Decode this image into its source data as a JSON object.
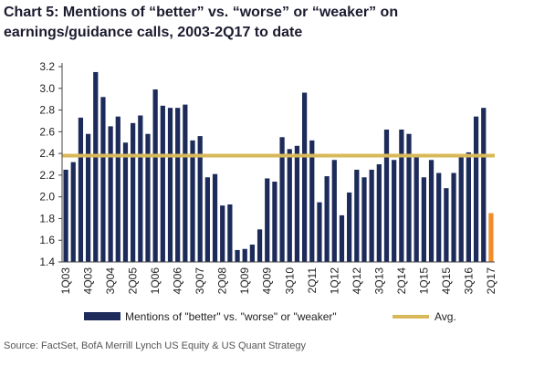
{
  "chart_data": {
    "type": "bar",
    "title": [
      "Chart 5: Mentions of “better” vs. “worse” or “weaker” on",
      "earnings/guidance calls, 2003-2Q17 to date"
    ],
    "source": "Source: FactSet, BofA Merrill Lynch US Equity & US Quant Strategy",
    "categories": [
      "1Q03",
      null,
      null,
      "4Q03",
      null,
      null,
      "3Q04",
      null,
      null,
      "2Q05",
      null,
      null,
      "1Q06",
      null,
      null,
      "4Q06",
      null,
      null,
      "3Q07",
      null,
      null,
      "2Q08",
      null,
      null,
      "1Q09",
      null,
      null,
      "4Q09",
      null,
      null,
      "3Q10",
      null,
      null,
      "2Q11",
      null,
      null,
      "1Q12",
      null,
      null,
      "4Q12",
      null,
      null,
      "3Q13",
      null,
      null,
      "2Q14",
      null,
      null,
      "1Q15",
      null,
      null,
      "4Q15",
      null,
      null,
      "3Q16",
      null,
      null,
      "2Q17"
    ],
    "series": [
      {
        "name": "Mentions of \"better\" vs. \"worse\" or \"weaker\"",
        "color": "#1c2b5a",
        "highlight_color": "#f28c28",
        "highlight_category": "2Q17",
        "values": [
          2.25,
          2.32,
          2.73,
          2.58,
          3.15,
          2.92,
          2.65,
          2.74,
          2.5,
          2.68,
          2.75,
          2.58,
          2.99,
          2.84,
          2.82,
          2.82,
          2.85,
          2.52,
          2.56,
          2.18,
          2.21,
          1.92,
          1.93,
          1.51,
          1.52,
          1.56,
          1.7,
          2.17,
          2.14,
          2.55,
          2.44,
          2.47,
          2.96,
          2.52,
          1.95,
          2.19,
          2.34,
          1.83,
          2.04,
          2.25,
          2.18,
          2.25,
          2.3,
          2.62,
          2.34,
          2.62,
          2.58,
          2.38,
          2.18,
          2.34,
          2.22,
          2.08,
          2.22,
          2.38,
          2.41,
          2.74,
          2.82,
          1.85
        ]
      },
      {
        "name": "Avg.",
        "color": "#d8b95a",
        "value": 2.38
      }
    ],
    "ylim": [
      1.4,
      3.2
    ],
    "yticks": [
      {
        "value": 1.4,
        "label": "1.4"
      },
      {
        "value": 1.6,
        "label": "1.6"
      },
      {
        "value": 1.8,
        "label": "1.8"
      },
      {
        "value": 2,
        "label": "2.0"
      },
      {
        "value": 2.2,
        "label": "2.2"
      },
      {
        "value": 2.4,
        "label": "2.4"
      },
      {
        "value": 2.6,
        "label": "2.6"
      },
      {
        "value": 2.8,
        "label": "2.8"
      },
      {
        "value": 3,
        "label": "3.0"
      },
      {
        "value": 3.2,
        "label": "3.2"
      }
    ],
    "grid": false
  }
}
